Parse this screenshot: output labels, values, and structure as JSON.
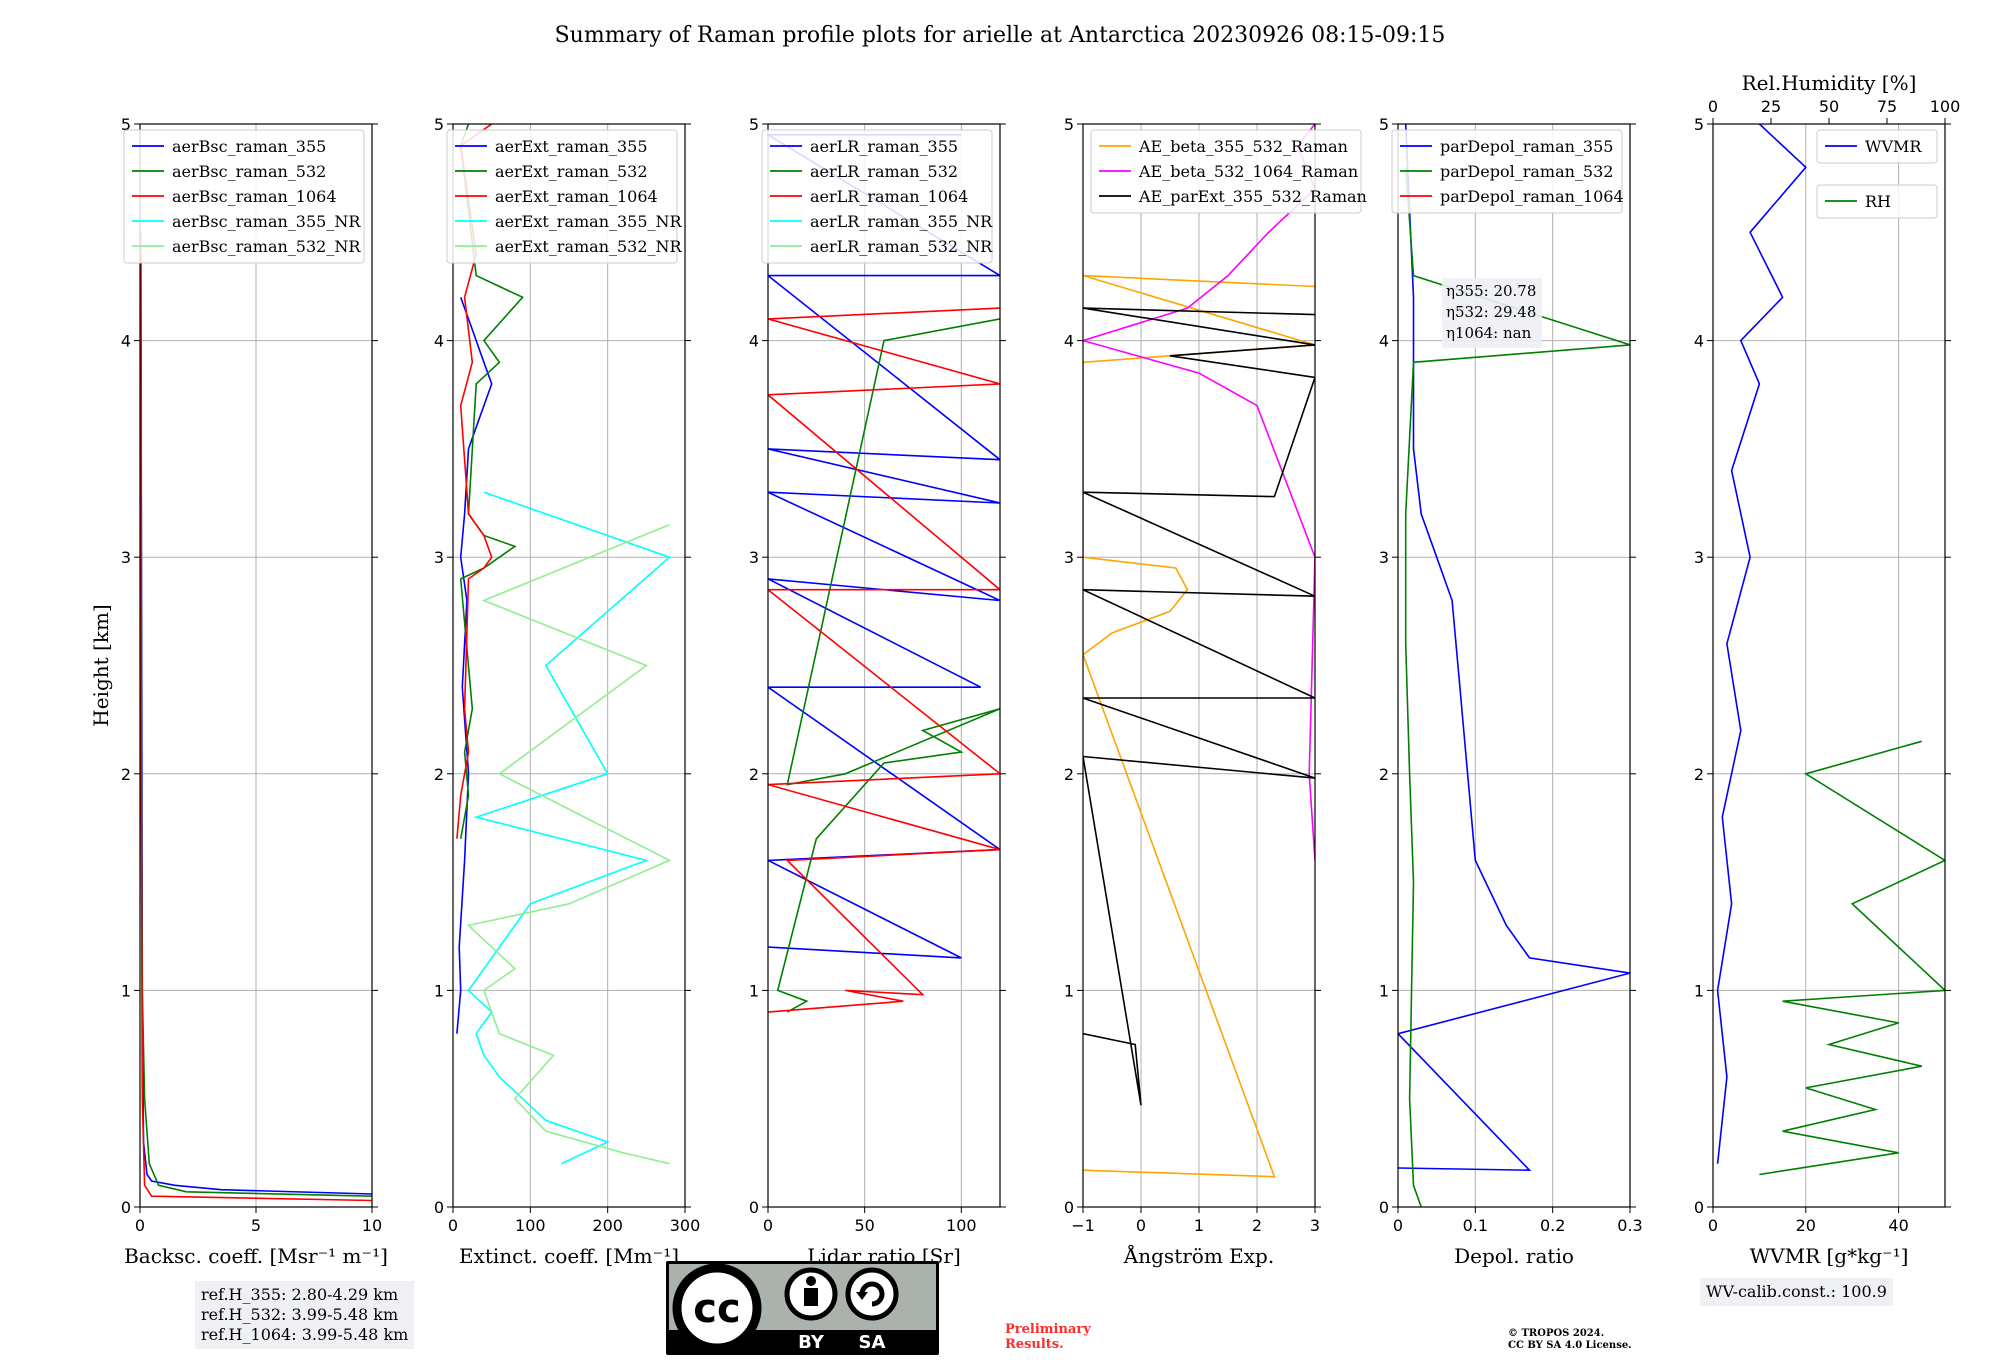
{
  "title": "Summary of Raman profile plots for arielle at Antarctica 20230926 08:15-09:15",
  "footer": {
    "ref_heights": [
      "ref.H_355: 2.80-4.29 km",
      "ref.H_532: 3.99-5.48 km",
      "ref.H_1064: 3.99-5.48 km"
    ],
    "wv_calib": "WV-calib.const.: 100.9",
    "preliminary": [
      "Preliminary",
      "Results."
    ],
    "copyright": [
      "© TROPOS 2024.",
      "CC BY SA 4.0 License."
    ],
    "cc_badge": {
      "cc": "cc",
      "by": "BY",
      "sa": "SA"
    }
  },
  "chart_data": [
    {
      "type": "line",
      "xlabel": "Backsc. coeff. [Msr⁻¹ m⁻¹]",
      "ylabel": "Height [km]",
      "xlim": [
        0,
        10
      ],
      "ylim": [
        0,
        5
      ],
      "xticks": [
        0,
        5,
        10
      ],
      "yticks": [
        0,
        1,
        2,
        3,
        4,
        5
      ],
      "grid": true,
      "legend": "top-right",
      "series": [
        {
          "name": "aerBsc_raman_355",
          "color": "#0000ff",
          "x": [
            10,
            3.5,
            1.5,
            0.5,
            0.3,
            0.15,
            0.1,
            0.08,
            0.05,
            0.04
          ],
          "y": [
            0.06,
            0.08,
            0.1,
            0.12,
            0.15,
            0.3,
            1.0,
            2.0,
            3.5,
            4.4
          ]
        },
        {
          "name": "aerBsc_raman_532",
          "color": "#008000",
          "x": [
            10,
            2.0,
            0.8,
            0.4,
            0.2,
            0.1,
            0.06,
            0.05
          ],
          "y": [
            0.05,
            0.07,
            0.1,
            0.2,
            0.5,
            1.0,
            2.0,
            4.0
          ]
        },
        {
          "name": "aerBsc_raman_1064",
          "color": "#ff0000",
          "x": [
            10,
            0.5,
            0.2,
            0.1,
            0.05,
            0.03
          ],
          "y": [
            0.03,
            0.05,
            0.1,
            0.5,
            2.0,
            4.5
          ]
        },
        {
          "name": "aerBsc_raman_355_NR",
          "color": "#00ffff",
          "x": [],
          "y": []
        },
        {
          "name": "aerBsc_raman_532_NR",
          "color": "#90ee90",
          "x": [],
          "y": []
        }
      ]
    },
    {
      "type": "line",
      "xlabel": "Extinct. coeff. [Mm⁻¹]",
      "ylabel": "",
      "xlim": [
        0,
        300
      ],
      "ylim": [
        0,
        5
      ],
      "xticks": [
        0,
        100,
        200,
        300
      ],
      "yticks": [
        0,
        1,
        2,
        3,
        4,
        5
      ],
      "grid": true,
      "legend": "top-right",
      "series": [
        {
          "name": "aerExt_raman_355",
          "color": "#0000ff",
          "x": [
            5,
            10,
            8,
            15,
            20,
            12,
            18,
            10,
            15,
            20,
            30,
            40,
            50,
            40,
            30,
            20,
            15,
            10
          ],
          "y": [
            0.8,
            1.0,
            1.2,
            1.6,
            2.0,
            2.4,
            2.8,
            3.0,
            3.2,
            3.5,
            3.6,
            3.7,
            3.8,
            3.9,
            4.0,
            4.1,
            4.15,
            4.2
          ]
        },
        {
          "name": "aerExt_raman_532",
          "color": "#008000",
          "x": [
            10,
            20,
            15,
            25,
            10,
            40,
            60,
            80,
            40,
            20,
            30,
            60,
            40,
            90,
            30,
            10,
            20
          ],
          "y": [
            1.7,
            1.9,
            2.1,
            2.3,
            2.9,
            2.95,
            3.0,
            3.05,
            3.1,
            3.2,
            3.8,
            3.9,
            4.0,
            4.2,
            4.3,
            4.9,
            5.0
          ]
        },
        {
          "name": "aerExt_raman_1064",
          "color": "#ff0000",
          "x": [
            5,
            10,
            20,
            15,
            20,
            40,
            50,
            40,
            20,
            10,
            25,
            15,
            30,
            10,
            50
          ],
          "y": [
            1.7,
            1.9,
            2.1,
            2.3,
            2.9,
            2.95,
            3.0,
            3.1,
            3.2,
            3.7,
            3.9,
            4.2,
            4.4,
            4.9,
            5.0
          ]
        },
        {
          "name": "aerExt_raman_355_NR",
          "color": "#00ffff",
          "x": [
            140,
            200,
            120,
            90,
            60,
            40,
            30,
            50,
            20,
            60,
            100,
            250,
            30,
            200,
            120,
            280,
            40
          ],
          "y": [
            0.2,
            0.3,
            0.4,
            0.5,
            0.6,
            0.7,
            0.8,
            0.9,
            1.0,
            1.2,
            1.4,
            1.6,
            1.8,
            2.0,
            2.5,
            3.0,
            3.3
          ]
        },
        {
          "name": "aerExt_raman_532_NR",
          "color": "#90ee90",
          "x": [
            280,
            220,
            120,
            80,
            130,
            60,
            40,
            80,
            20,
            150,
            280,
            60,
            250,
            40,
            280
          ],
          "y": [
            0.2,
            0.25,
            0.35,
            0.5,
            0.7,
            0.8,
            1.0,
            1.1,
            1.3,
            1.4,
            1.6,
            2.0,
            2.5,
            2.8,
            3.15
          ]
        }
      ]
    },
    {
      "type": "line",
      "xlabel": "Lidar ratio [Sr]",
      "ylabel": "",
      "xlim": [
        0,
        120
      ],
      "ylim": [
        0,
        5
      ],
      "xticks": [
        0,
        50,
        100
      ],
      "yticks": [
        0,
        1,
        2,
        3,
        4,
        5
      ],
      "grid": true,
      "legend": "top-right",
      "series": [
        {
          "name": "aerLR_raman_355",
          "color": "#0000ff",
          "x": [
            0,
            100,
            0,
            120,
            0,
            110,
            0,
            120,
            0,
            120,
            0,
            120,
            0,
            120,
            0,
            100
          ],
          "y": [
            1.2,
            1.15,
            1.6,
            1.65,
            2.4,
            2.4,
            2.9,
            2.8,
            3.3,
            3.25,
            3.5,
            3.45,
            4.3,
            4.3,
            4.95,
            4.95
          ]
        },
        {
          "name": "aerLR_raman_532",
          "color": "#008000",
          "x": [
            10,
            20,
            5,
            25,
            60,
            100,
            80,
            120,
            40,
            10,
            60,
            120
          ],
          "y": [
            0.9,
            0.95,
            1.0,
            1.7,
            2.05,
            2.1,
            2.2,
            2.3,
            2.0,
            1.95,
            4.0,
            4.1
          ]
        },
        {
          "name": "aerLR_raman_1064",
          "color": "#ff0000",
          "x": [
            0,
            70,
            40,
            80,
            10,
            120,
            0,
            120,
            0,
            120,
            0,
            120,
            0,
            120
          ],
          "y": [
            0.9,
            0.95,
            1.0,
            0.98,
            1.6,
            1.65,
            1.95,
            2.0,
            2.85,
            2.85,
            3.75,
            3.8,
            4.1,
            4.15
          ]
        },
        {
          "name": "aerLR_raman_355_NR",
          "color": "#00ffff",
          "x": [],
          "y": []
        },
        {
          "name": "aerLR_raman_532_NR",
          "color": "#90ee90",
          "x": [],
          "y": []
        }
      ]
    },
    {
      "type": "line",
      "xlabel": "Ångström Exp.",
      "ylabel": "",
      "xlim": [
        -1,
        3
      ],
      "ylim": [
        0,
        5
      ],
      "xticks": [
        -1,
        0,
        1,
        2,
        3
      ],
      "yticks": [
        0,
        1,
        2,
        3,
        4,
        5
      ],
      "grid": true,
      "legend": "top-left",
      "series": [
        {
          "name": "AE_beta_355_532_Raman",
          "color": "#ffa500",
          "x": [
            -1,
            2.3,
            -1,
            -0.5,
            0.5,
            0.8,
            0.6,
            -1,
            -1,
            3,
            -1,
            3
          ],
          "y": [
            0.17,
            0.14,
            2.55,
            2.65,
            2.75,
            2.85,
            2.95,
            3.0,
            3.9,
            3.98,
            4.3,
            4.25
          ]
        },
        {
          "name": "AE_beta_532_1064_Raman",
          "color": "#ff00ff",
          "x": [
            3,
            2.9,
            2.95,
            3,
            2.0,
            1.0,
            -1,
            0.8,
            1.5,
            2.2,
            3,
            2.7,
            3
          ],
          "y": [
            1.6,
            2.0,
            2.5,
            3.0,
            3.7,
            3.85,
            4.0,
            4.15,
            4.3,
            4.5,
            4.7,
            4.9,
            5.0
          ]
        },
        {
          "name": "AE_parExt_355_532_Raman",
          "color": "#000000",
          "x": [
            -1,
            -0.1,
            0,
            -1,
            3,
            -1,
            3,
            -1,
            3,
            -1,
            2.3,
            3,
            0.5,
            3,
            -1,
            3
          ],
          "y": [
            0.8,
            0.75,
            0.47,
            2.08,
            1.98,
            2.35,
            2.35,
            2.85,
            2.82,
            3.3,
            3.28,
            3.83,
            3.93,
            3.98,
            4.15,
            4.12
          ]
        }
      ]
    },
    {
      "type": "line",
      "xlabel": "Depol. ratio",
      "ylabel": "",
      "xlim": [
        0,
        0.3
      ],
      "ylim": [
        0,
        5
      ],
      "xticks": [
        0,
        0.1,
        0.2,
        0.3
      ],
      "yticks": [
        0,
        1,
        2,
        3,
        4,
        5
      ],
      "grid": true,
      "legend": "top-right",
      "annotations": [
        "η355: 20.78",
        "η532: 29.48",
        "η1064: nan"
      ],
      "series": [
        {
          "name": "parDepol_raman_355",
          "color": "#0000ff",
          "x": [
            0,
            0.17,
            0.0,
            0.3,
            0.17,
            0.14,
            0.1,
            0.09,
            0.08,
            0.07,
            0.05,
            0.03,
            0.02,
            0.02,
            0.01
          ],
          "y": [
            0.18,
            0.17,
            0.8,
            1.08,
            1.15,
            1.3,
            1.6,
            2.0,
            2.4,
            2.8,
            3.0,
            3.2,
            3.5,
            4.2,
            5.0
          ]
        },
        {
          "name": "parDepol_raman_532",
          "color": "#008000",
          "x": [
            0.03,
            0.02,
            0.015,
            0.02,
            0.015,
            0.01,
            0.01,
            0.02,
            0.3,
            0.02,
            0.01
          ],
          "y": [
            0.0,
            0.1,
            0.5,
            1.5,
            2.0,
            2.6,
            3.2,
            3.9,
            3.98,
            4.3,
            4.8
          ]
        },
        {
          "name": "parDepol_raman_1064",
          "color": "#ff0000",
          "x": [],
          "y": []
        }
      ]
    },
    {
      "type": "line",
      "xlabel": "WVMR [g*kg⁻¹]",
      "ylabel": "",
      "xlim": [
        0,
        50
      ],
      "ylim": [
        0,
        5
      ],
      "xticks": [
        0,
        20,
        40
      ],
      "yticks": [
        0,
        1,
        2,
        3,
        4,
        5
      ],
      "xlabel_top": "Rel.Humidity [%]",
      "xlim_top": [
        0,
        100
      ],
      "xticks_top": [
        0,
        25,
        50,
        75,
        100
      ],
      "grid": true,
      "legend": "top-right",
      "series": [
        {
          "name": "WVMR",
          "color": "#0000ff",
          "x": [
            1,
            3,
            1,
            4,
            2,
            6,
            3,
            8,
            4,
            10,
            6,
            15,
            8,
            20,
            10
          ],
          "y": [
            0.2,
            0.6,
            1.0,
            1.4,
            1.8,
            2.2,
            2.6,
            3.0,
            3.4,
            3.8,
            4.0,
            4.2,
            4.5,
            4.8,
            5.0
          ]
        },
        {
          "name": "RH",
          "color": "#008000",
          "x": [
            10,
            40,
            15,
            35,
            20,
            45,
            25,
            40,
            15,
            50,
            30,
            50,
            20,
            45
          ],
          "y": [
            0.15,
            0.25,
            0.35,
            0.45,
            0.55,
            0.65,
            0.75,
            0.85,
            0.95,
            1.0,
            1.4,
            1.6,
            2.0,
            2.15
          ]
        }
      ]
    }
  ]
}
